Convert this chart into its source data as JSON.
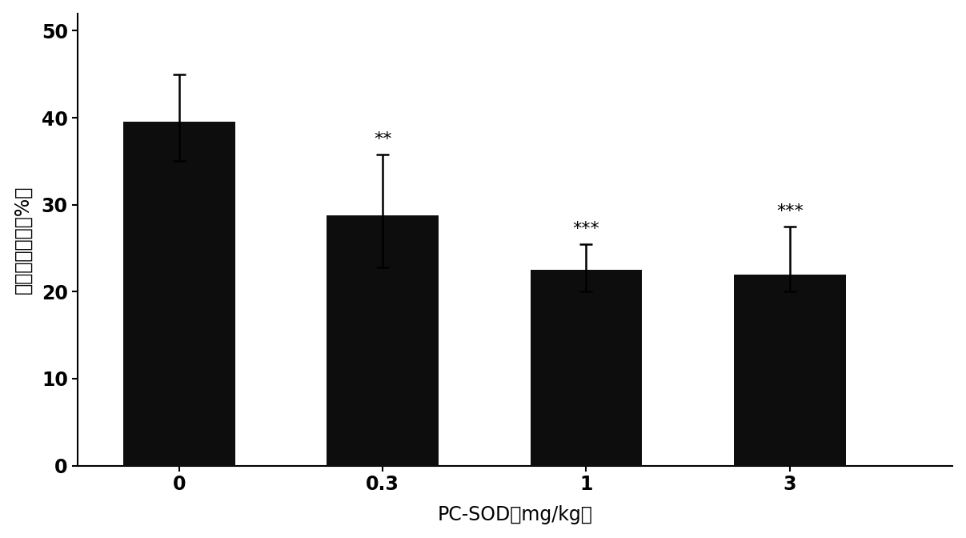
{
  "categories": [
    "0",
    "0.3",
    "1",
    "3"
  ],
  "values": [
    39.5,
    28.8,
    22.5,
    22.0
  ],
  "errors_upper": [
    5.5,
    7.0,
    3.0,
    5.5
  ],
  "errors_lower": [
    4.5,
    6.0,
    2.5,
    2.0
  ],
  "bar_color": "#0d0d0d",
  "bar_width": 0.55,
  "significance": [
    "",
    "**",
    "***",
    "***"
  ],
  "ylabel": "无复流面积比（%）",
  "xlabel": "PC-SOD（mg/kg）",
  "ylim": [
    0,
    52
  ],
  "yticks": [
    0,
    10,
    20,
    30,
    40,
    50
  ],
  "background_color": "#ffffff",
  "bar_positions": [
    1,
    2,
    3,
    4
  ],
  "sig_fontsize": 16,
  "ylabel_fontsize": 17,
  "xlabel_fontsize": 17,
  "tick_fontsize": 17,
  "xlim": [
    0.5,
    4.8
  ]
}
